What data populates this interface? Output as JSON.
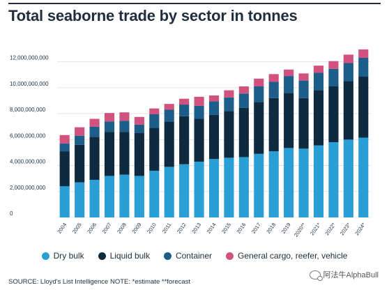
{
  "header": {
    "title": "Total seaborne trade by sector in tonnes"
  },
  "chart_data": {
    "type": "bar",
    "stacked": true,
    "title": "Total seaborne trade by sector in tonnes",
    "xlabel": "",
    "ylabel": "",
    "ylim": [
      0,
      13000000000
    ],
    "yticks": [
      0,
      2000000000,
      4000000000,
      6000000000,
      8000000000,
      10000000000,
      12000000000
    ],
    "ytick_labels": [
      "0",
      "2,000,000,000",
      "4,000,000,000",
      "6,000,000,000",
      "8,000,000,000",
      "10,000,000,000",
      "12,000,000,000"
    ],
    "grid": true,
    "legend_position": "bottom",
    "categories": [
      "2004",
      "2005",
      "2006",
      "2007",
      "2008",
      "2009",
      "2010",
      "2011",
      "2012",
      "2013",
      "2014",
      "2015",
      "2016",
      "2017",
      "2018",
      "2019",
      "2020**",
      "2021*",
      "2022*",
      "2023*",
      "2024*"
    ],
    "series": [
      {
        "name": "Dry bulk",
        "color": "#2a9fd6",
        "values": [
          2400000000,
          2700000000,
          2900000000,
          3200000000,
          3300000000,
          3200000000,
          3600000000,
          3900000000,
          4100000000,
          4300000000,
          4500000000,
          4600000000,
          4650000000,
          4900000000,
          5100000000,
          5350000000,
          5300000000,
          5550000000,
          5800000000,
          6000000000,
          6150000000
        ]
      },
      {
        "name": "Liquid bulk",
        "color": "#0f2a3f",
        "values": [
          2700000000,
          2900000000,
          3300000000,
          3400000000,
          3300000000,
          3300000000,
          3300000000,
          3500000000,
          3700000000,
          3300000000,
          3400000000,
          3600000000,
          3800000000,
          4000000000,
          4100000000,
          4250000000,
          3900000000,
          4250000000,
          4300000000,
          4500000000,
          4700000000
        ]
      },
      {
        "name": "Container",
        "color": "#1c5d8a",
        "values": [
          600000000,
          700000000,
          800000000,
          800000000,
          850000000,
          650000000,
          1050000000,
          900000000,
          900000000,
          1000000000,
          1050000000,
          1050000000,
          1100000000,
          1200000000,
          1250000000,
          1300000000,
          1350000000,
          1350000000,
          1350000000,
          1400000000,
          1450000000
        ]
      },
      {
        "name": "General cargo, reefer, vehicle",
        "color": "#d2527f",
        "values": [
          650000000,
          650000000,
          600000000,
          650000000,
          650000000,
          600000000,
          450000000,
          450000000,
          450000000,
          700000000,
          450000000,
          550000000,
          550000000,
          600000000,
          600000000,
          500000000,
          550000000,
          550000000,
          600000000,
          650000000,
          650000000
        ]
      }
    ]
  },
  "legend": {
    "items": [
      {
        "label": "Dry bulk",
        "color": "#2a9fd6"
      },
      {
        "label": "Liquid bulk",
        "color": "#0f2a3f"
      },
      {
        "label": "Container",
        "color": "#1c5d8a"
      },
      {
        "label": "General cargo, reefer, vehicle",
        "color": "#d2527f"
      }
    ]
  },
  "footer": {
    "source": "SOURCE: Lloyd's List Intelligence NOTE: *estimate **forecast"
  },
  "watermark": {
    "text": "阿法牛AlphaBull",
    "icon": "wechat-icon"
  },
  "colors": {
    "title": "#1f2d3d",
    "grid": "#dcdfe3"
  }
}
